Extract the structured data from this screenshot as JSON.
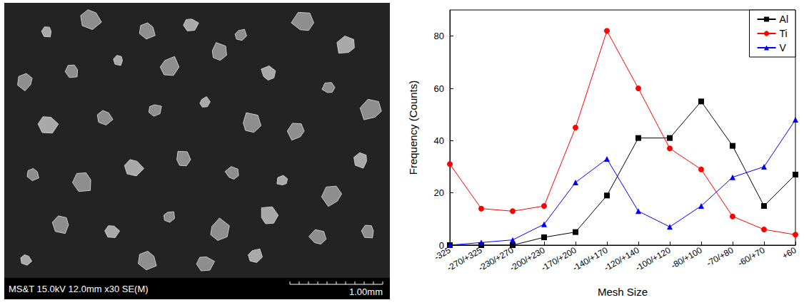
{
  "sem_image": {
    "info": "MS&T 15.0kV 12.0mm x30 SE(M)",
    "scale_bar": "1.00mm"
  },
  "chart_data": {
    "type": "line",
    "x_label": "Mesh Size",
    "y_label": "Frequency (Counts)",
    "categories": [
      "-325",
      "-270/+325",
      "-230/+270",
      "-200/+230",
      "-170/+200",
      "-140/+170",
      "-120/+140",
      "-100/+120",
      "-80/+100",
      "-70/+80",
      "-60/+70",
      "+60"
    ],
    "series": [
      {
        "name": "Al",
        "color": "#000000",
        "marker": "square",
        "values": [
          0,
          0,
          0,
          3,
          5,
          19,
          41,
          41,
          55,
          38,
          15,
          27
        ]
      },
      {
        "name": "Ti",
        "color": "#ff0000",
        "marker": "circle",
        "values": [
          31,
          14,
          13,
          15,
          45,
          82,
          60,
          37,
          29,
          11,
          6,
          4
        ]
      },
      {
        "name": "V",
        "color": "#0000ff",
        "marker": "triangle",
        "values": [
          0,
          1,
          2,
          8,
          24,
          33,
          13,
          7,
          15,
          26,
          30,
          48
        ]
      }
    ],
    "ylim": [
      0,
      90
    ],
    "yticks": [
      0,
      20,
      40,
      60,
      80
    ],
    "legend": "top-right",
    "grid": false
  }
}
